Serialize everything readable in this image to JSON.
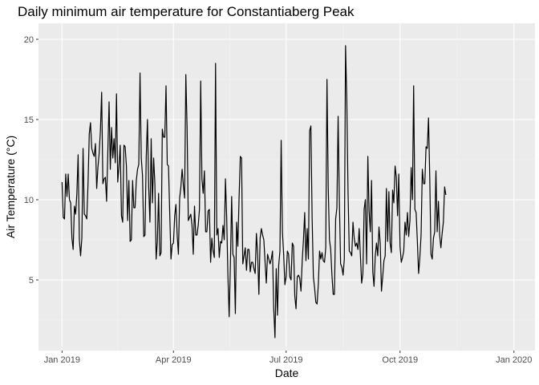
{
  "chart_data": {
    "type": "line",
    "title": "Daily minimum air temperature for Constantiaberg Peak",
    "xlabel": "Date",
    "ylabel": "Air Temperature (°C)",
    "x_range": [
      "2018-12-13",
      "2020-01-18"
    ],
    "ylim": [
      0.6,
      21.0
    ],
    "x_ticks": [
      {
        "date": "2019-01-01",
        "label": "Jan 2019"
      },
      {
        "date": "2019-04-01",
        "label": "Apr 2019"
      },
      {
        "date": "2019-07-01",
        "label": "Jul 2019"
      },
      {
        "date": "2019-10-01",
        "label": "Oct 2019"
      },
      {
        "date": "2020-01-01",
        "label": "Jan 2020"
      }
    ],
    "y_ticks": [
      5,
      10,
      15,
      20
    ],
    "grid": true,
    "line_color": "#000000",
    "panel_color": "#ebebeb",
    "series": [
      {
        "x_start": "2019-01-01",
        "values": [
          11.1,
          8.9,
          8.8,
          11.6,
          10.2,
          11.6,
          10.0,
          9.8,
          7.6,
          6.9,
          9.6,
          9.1,
          10.4,
          12.8,
          7.5,
          6.5,
          7.6,
          13.2,
          9.1,
          9.0,
          8.8,
          11.0,
          14.1,
          14.8,
          13.2,
          12.9,
          12.7,
          13.5,
          10.7,
          12.0,
          12.9,
          14.3,
          16.7,
          11.0,
          11.3,
          11.4,
          9.9,
          13.0,
          16.1,
          11.9,
          14.5,
          12.6,
          13.8,
          12.3,
          16.6,
          11.1,
          12.1,
          13.4,
          9.0,
          8.6,
          13.4,
          13.3,
          12.1,
          8.7,
          11.2,
          7.4,
          7.5,
          11.2,
          9.5,
          9.5,
          11.2,
          11.9,
          12.2,
          17.9,
          12.6,
          11.5,
          7.7,
          7.8,
          12.6,
          15.0,
          10.8,
          8.6,
          13.8,
          9.8,
          12.6,
          11.0,
          6.3,
          7.4,
          10.4,
          6.5,
          6.7,
          14.4,
          13.9,
          13.9,
          17.1,
          12.2,
          12.1,
          9.1,
          6.3,
          7.2,
          7.3,
          9.0,
          9.7,
          7.8,
          6.6,
          10.1,
          10.8,
          11.9,
          10.9,
          10.1,
          17.8,
          14.5,
          8.7,
          8.9,
          9.1,
          8.4,
          6.6,
          9.6,
          7.8,
          7.8,
          8.4,
          9.4,
          17.4,
          11.3,
          10.4,
          11.8,
          8.0,
          8.0,
          9.3,
          9.4,
          6.1,
          7.6,
          6.8,
          6.4,
          18.5,
          7.8,
          8.2,
          6.4,
          7.4,
          7.3,
          8.4,
          7.5,
          11.3,
          8.9,
          5.2,
          2.7,
          6.0,
          10.2,
          6.6,
          6.4,
          2.9,
          8.6,
          7.1,
          10.1,
          12.7,
          12.6,
          6.0,
          6.5,
          7.0,
          5.6,
          6.9,
          6.9,
          5.5,
          6.1,
          6.1,
          5.7,
          5.4,
          7.9,
          6.6,
          4.1,
          7.6,
          8.2,
          7.8,
          7.5,
          6.1,
          4.8,
          6.6,
          6.3,
          6.0,
          6.3,
          6.8,
          3.2,
          1.4,
          5.7,
          2.8,
          5.9,
          6.8,
          13.7,
          8.0,
          6.6,
          4.7,
          5.2,
          6.8,
          6.6,
          5.2,
          5.0,
          7.3,
          7.1,
          4.0,
          3.2,
          5.2,
          5.3,
          5.1,
          4.3,
          6.2,
          7.5,
          9.2,
          6.2,
          8.2,
          6.3,
          14.3,
          14.6,
          8.9,
          5.2,
          4.5,
          3.6,
          3.5,
          4.7,
          6.8,
          6.3,
          6.7,
          6.2,
          6.1,
          7.0,
          17.5,
          10.8,
          7.5,
          6.9,
          5.3,
          4.1,
          4.1,
          8.8,
          9.5,
          15.2,
          9.9,
          6.0,
          5.8,
          5.3,
          6.3,
          19.6,
          16.2,
          10.5,
          6.8,
          6.7,
          6.5,
          8.6,
          7.6,
          7.1,
          7.3,
          6.9,
          8.2,
          6.5,
          4.8,
          5.4,
          9.4,
          10.0,
          6.0,
          12.7,
          9.3,
          8.0,
          11.2,
          5.5,
          4.6,
          6.5,
          7.3,
          6.5,
          8.3,
          7.3,
          4.3,
          5.2,
          6.2,
          6.5,
          10.7,
          7.4,
          10.5,
          7.3,
          6.7,
          10.6,
          9.8,
          12.1,
          11.4,
          9.0,
          11.6,
          7.1,
          6.1,
          6.4,
          6.8,
          8.6,
          7.8,
          9.2,
          7.7,
          8.7,
          12.0,
          10.0,
          17.1,
          9.4,
          9.2,
          7.4,
          5.4,
          6.4,
          7.8,
          11.9,
          11.0,
          11.0,
          13.3,
          13.2,
          15.1,
          11.4,
          6.6,
          6.3,
          7.6,
          8.0,
          11.8,
          8.0,
          9.9,
          7.8,
          7.0,
          7.9,
          8.6,
          10.8,
          10.3
        ]
      }
    ]
  }
}
